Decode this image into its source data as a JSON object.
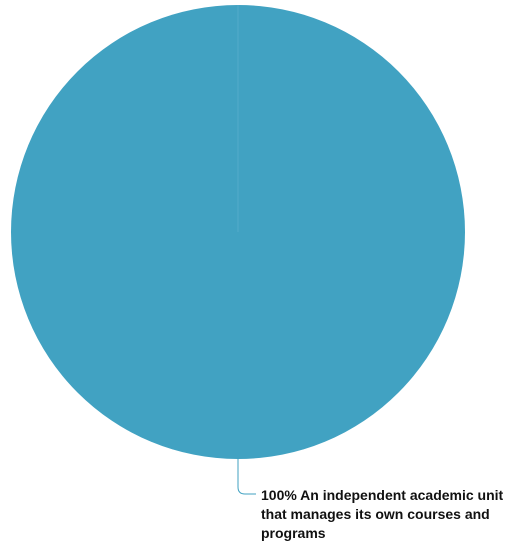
{
  "chart_data": {
    "type": "pie",
    "title": "",
    "series": [
      {
        "categories": [
          "An independent academic unit that manages its own courses and programs"
        ],
        "values": [
          100
        ],
        "labels": [
          "100% An independent academic unit that manages its own courses and programs"
        ],
        "colors": [
          "#41A2C2"
        ]
      }
    ],
    "legend": "none"
  }
}
